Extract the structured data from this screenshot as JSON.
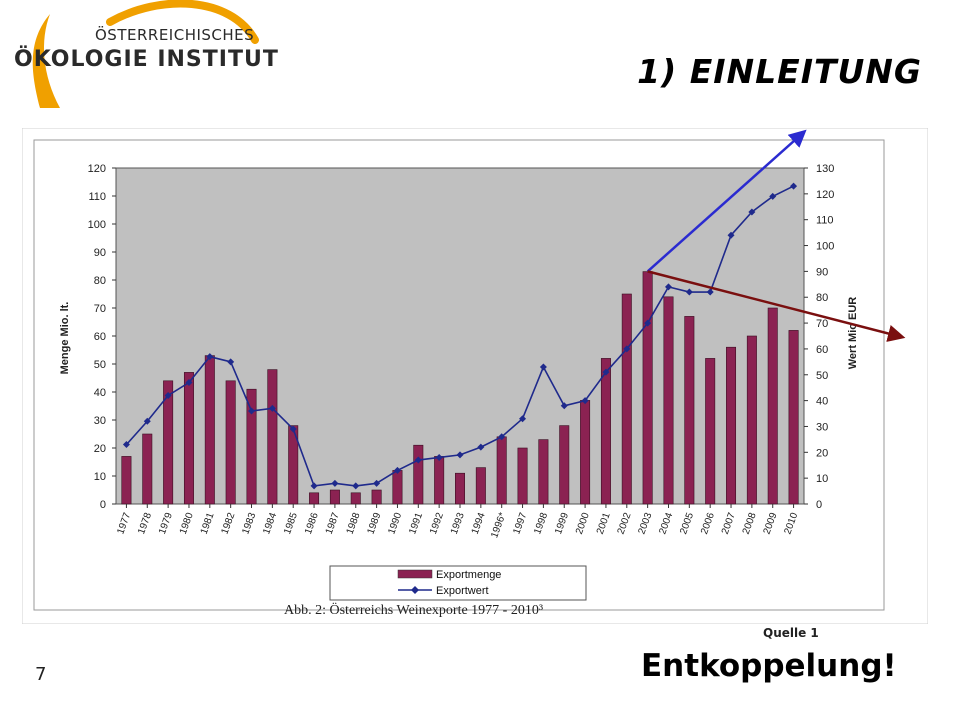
{
  "logo": {
    "line1": "ÖSTERREICHISCHES",
    "line2": "ÖKOLOGIE INSTITUT",
    "accent_color": "#f0a000",
    "text_color": "#2a2a2a"
  },
  "slide": {
    "title": "1) EINLEITUNG",
    "source": "Quelle 1",
    "page_number": "7",
    "headline": "Entkoppelung!"
  },
  "chart_data": {
    "type": "bar",
    "caption": "Abb. 2: Österreichs Weinexporte 1977 - 2010³",
    "categories": [
      "1977",
      "1978",
      "1979",
      "1980",
      "1981",
      "1982",
      "1983",
      "1984",
      "1985",
      "1986",
      "1987",
      "1988",
      "1989",
      "1990",
      "1991",
      "1992",
      "1993",
      "1994",
      "1996*",
      "1997",
      "1998",
      "1999",
      "2000",
      "2001",
      "2002",
      "2003",
      "2004",
      "2005",
      "2006",
      "2007",
      "2008",
      "2009",
      "2010"
    ],
    "series": [
      {
        "name": "Exportmenge",
        "kind": "bar",
        "axis": "left",
        "color": "#8b2252",
        "values": [
          17,
          25,
          44,
          47,
          53,
          44,
          41,
          48,
          28,
          4,
          5,
          4,
          5,
          12,
          21,
          17,
          11,
          13,
          24,
          20,
          23,
          28,
          37,
          52,
          75,
          83,
          74,
          67,
          52,
          56,
          60,
          70,
          62
        ]
      },
      {
        "name": "Exportwert",
        "kind": "line",
        "axis": "right",
        "color": "#1f2a8c",
        "values": [
          23,
          32,
          42,
          47,
          57,
          55,
          36,
          37,
          29,
          7,
          8,
          7,
          8,
          13,
          17,
          18,
          19,
          22,
          26,
          33,
          53,
          38,
          40,
          51,
          60,
          70,
          84,
          82,
          82,
          104,
          113,
          119,
          123
        ]
      }
    ],
    "ylabel_left": "Menge Mio. lt.",
    "ylabel_right": "Wert Mio EUR",
    "ylim_left": [
      0,
      120
    ],
    "ylim_right": [
      0,
      130
    ],
    "yticks_left": [
      0,
      10,
      20,
      30,
      40,
      50,
      60,
      70,
      80,
      90,
      100,
      110,
      120
    ],
    "yticks_right": [
      0,
      10,
      20,
      30,
      40,
      50,
      60,
      70,
      80,
      90,
      100,
      110,
      120,
      130
    ],
    "plot_background": "#c0c0c0",
    "legend_placement": "bottom",
    "annotations": [
      {
        "kind": "arrow",
        "color": "#2b2bd0",
        "from_category": "2003",
        "from_value_right": 90,
        "direction": "up-right"
      },
      {
        "kind": "arrow",
        "color": "#7a0f0f",
        "from_category": "2003",
        "from_value_right": 90,
        "direction": "down-right"
      }
    ]
  }
}
